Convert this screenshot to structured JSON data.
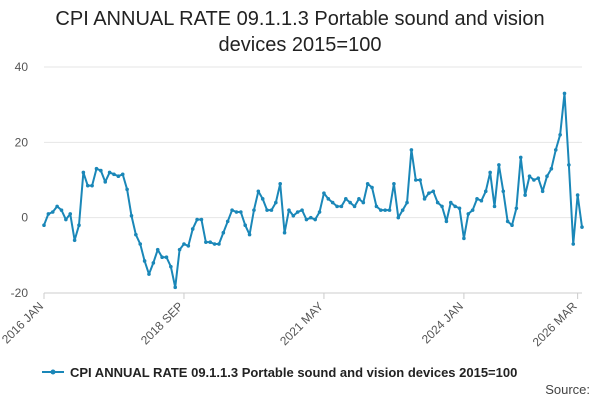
{
  "title_line1": "CPI ANNUAL RATE 09.1.1.3 Portable sound and vision",
  "title_line2": "devices 2015=100",
  "source": "Source:",
  "colors": {
    "series": "#1a87b8",
    "grid": "#e6e6e6",
    "axis": "#cccccc"
  },
  "chart_data": {
    "type": "line",
    "title": "CPI ANNUAL RATE 09.1.1.3 Portable sound and vision devices 2015=100",
    "xlabel": "",
    "ylabel": "",
    "ylim": [
      -20,
      40
    ],
    "y_ticks": [
      -20,
      0,
      20,
      40
    ],
    "x_tick_labels": [
      "2016 JAN",
      "2018 SEP",
      "2021 MAY",
      "2024 JAN",
      "2026 MAR"
    ],
    "x_tick_indices": [
      0,
      32,
      64,
      96,
      122
    ],
    "legend": "CPI ANNUAL RATE 09.1.1.3 Portable sound and vision devices 2015=100",
    "series": [
      {
        "name": "CPI ANNUAL RATE 09.1.1.3 Portable sound and vision devices 2015=100",
        "start": "2016 JAN",
        "values": [
          -2,
          1,
          1.5,
          3,
          2,
          -0.5,
          1,
          -6,
          -2,
          12,
          8.5,
          8.5,
          13,
          12.5,
          9.5,
          12,
          11.5,
          11,
          11.5,
          7.5,
          0.5,
          -4.5,
          -7,
          -11.5,
          -15,
          -12,
          -8.5,
          -10.5,
          -10.5,
          -13,
          -18.5,
          -8.5,
          -7,
          -7.5,
          -3,
          -0.5,
          -0.5,
          -6.5,
          -6.5,
          -7,
          -7,
          -4,
          -1,
          2,
          1.5,
          1.5,
          -2,
          -4.5,
          2,
          7,
          5,
          2,
          2,
          4,
          9,
          -4,
          2,
          0.5,
          1.5,
          2,
          -0.5,
          0,
          -0.5,
          1.5,
          6.5,
          5,
          4,
          3,
          3,
          5,
          4,
          3,
          5,
          4,
          9,
          8,
          3,
          2,
          2,
          2,
          9,
          0,
          2,
          4,
          18,
          10,
          10,
          5,
          6.5,
          7,
          4,
          3,
          -1,
          4,
          3,
          2.5,
          -5.5,
          1,
          2,
          5,
          4.5,
          7,
          12,
          3,
          14,
          7,
          -1,
          -2,
          2.5,
          16,
          6,
          11,
          10,
          10.5,
          7,
          11,
          13,
          18,
          22,
          33,
          14,
          -7,
          6,
          -2.5
        ]
      }
    ]
  }
}
